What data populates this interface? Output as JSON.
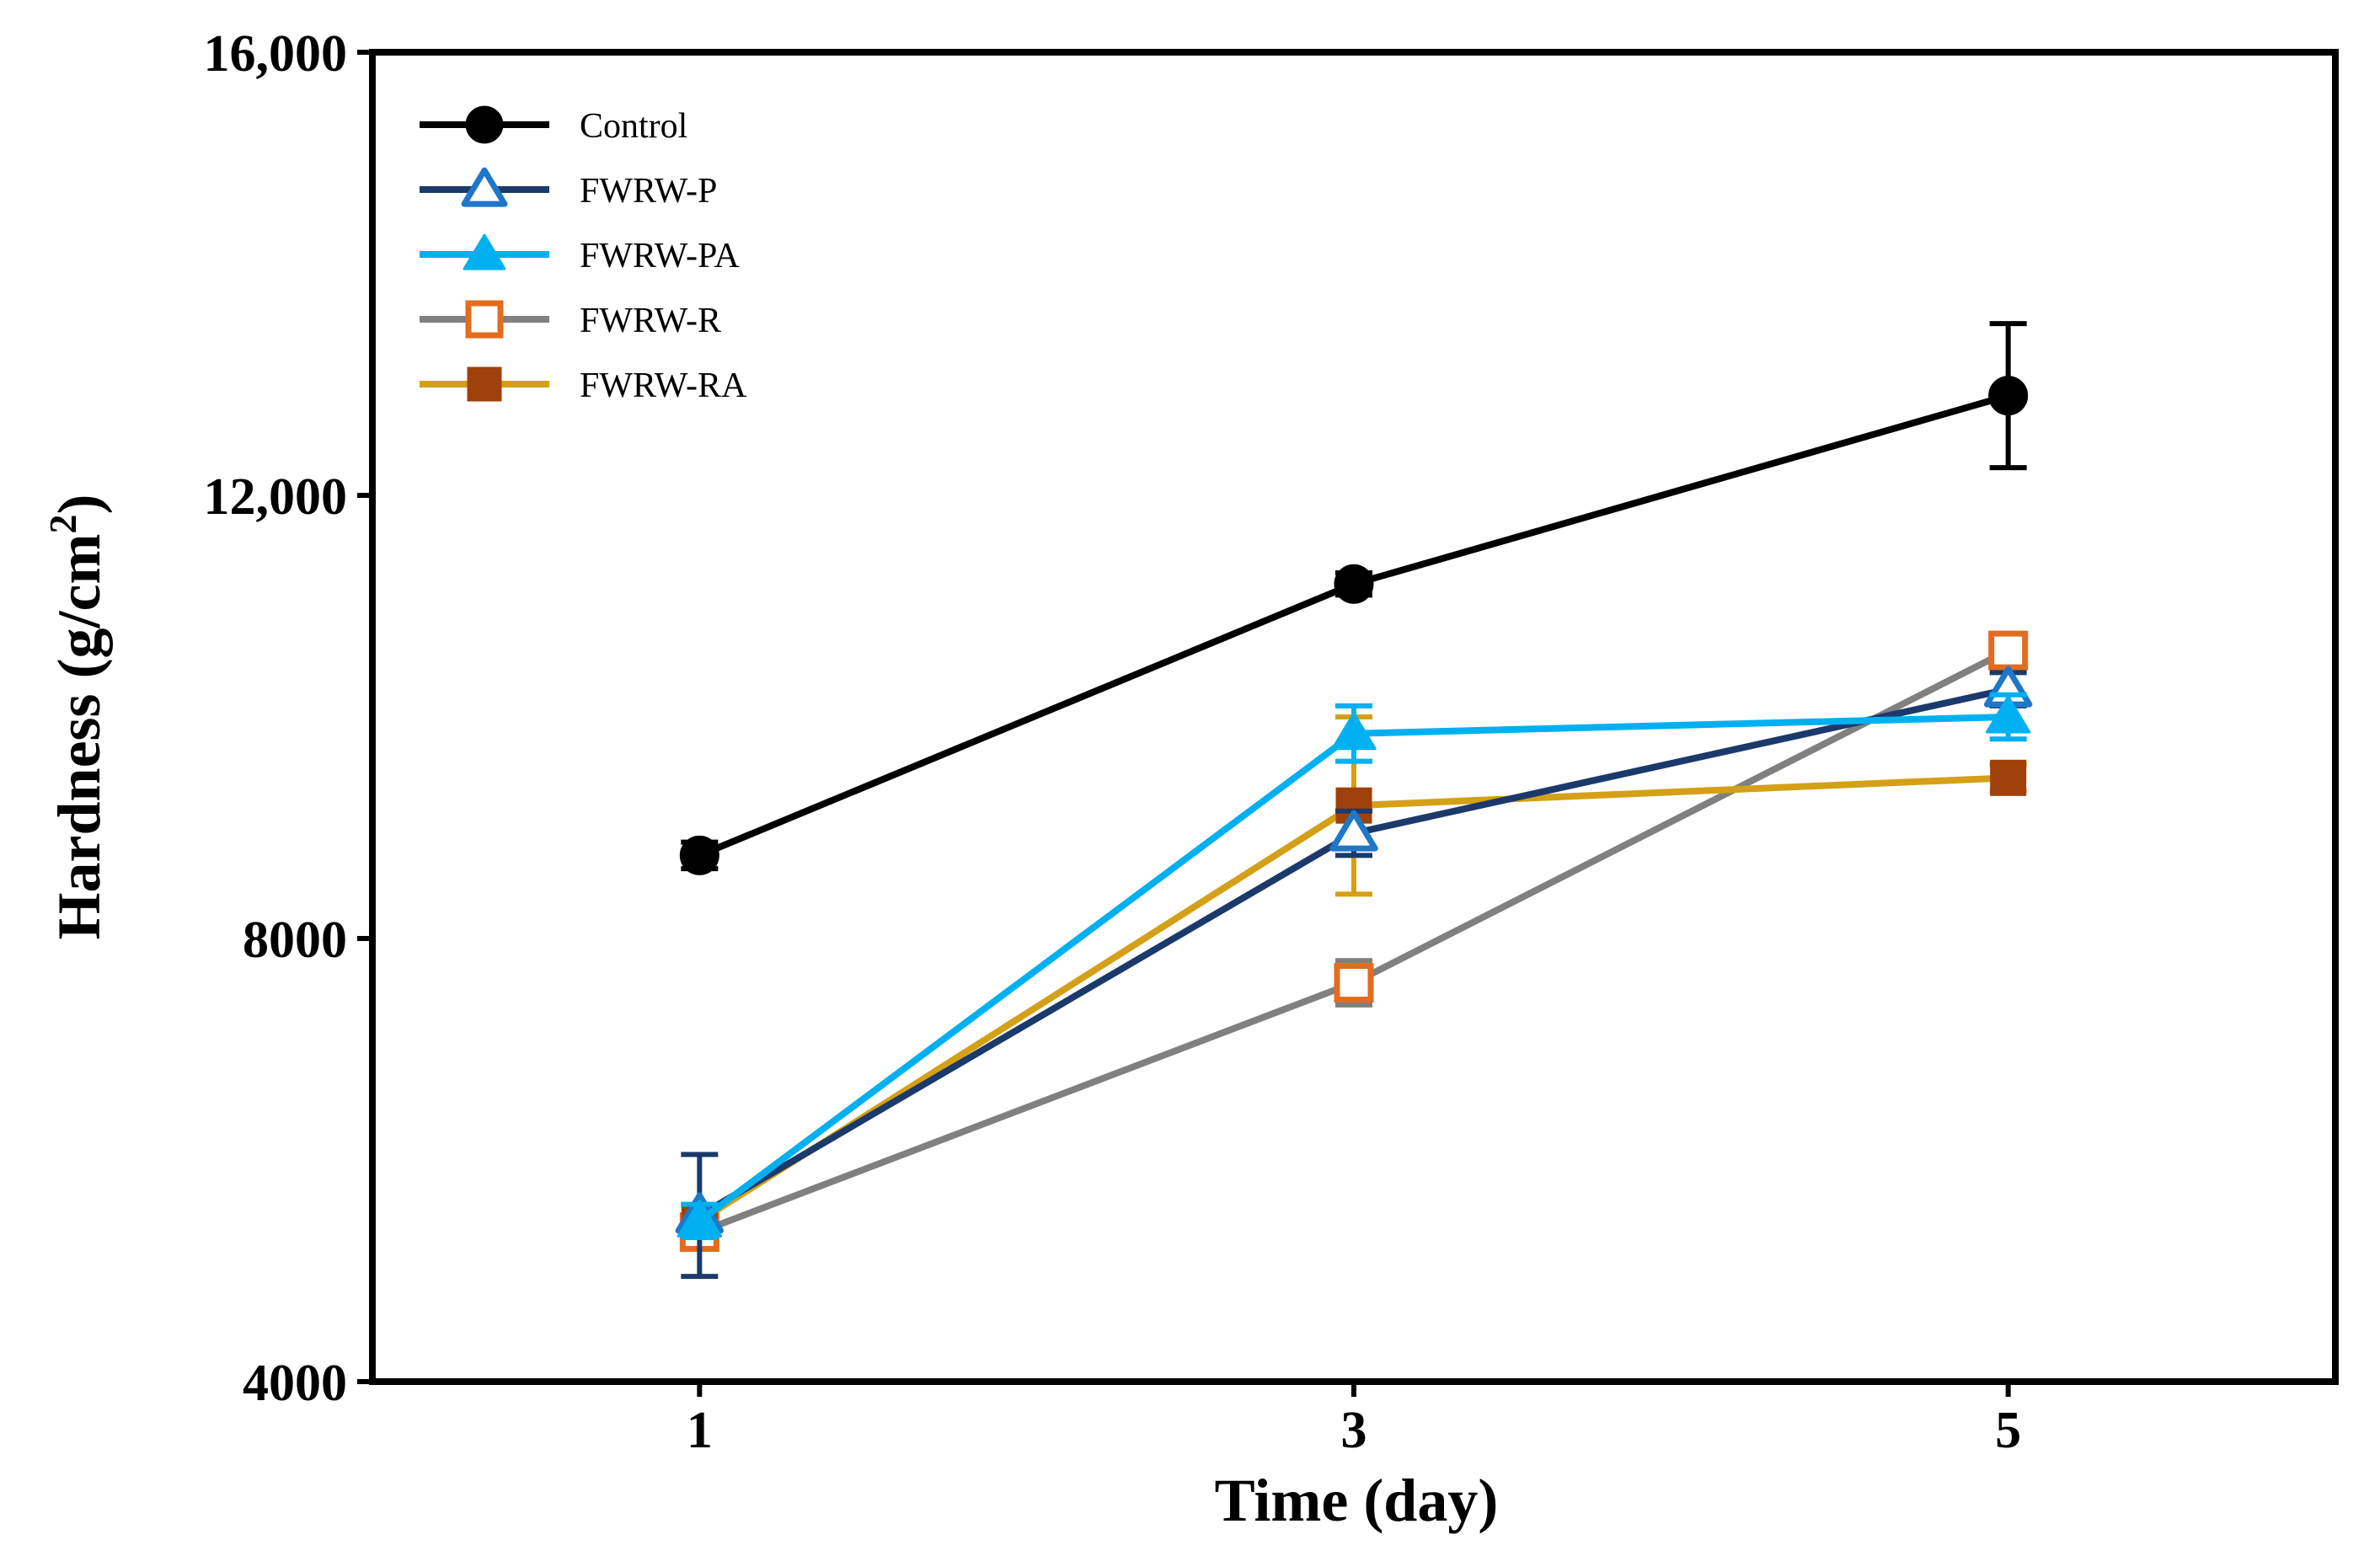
{
  "colors": {
    "control": "#000000",
    "fwrw_p": "#1b3a6b",
    "fwrw_p_marker": "#1f77c8",
    "fwrw_pa": "#00b0f0",
    "fwrw_r": "#808080",
    "fwrw_r_marker": "#e36c1e",
    "fwrw_ra": "#d4a017",
    "fwrw_ra_marker": "#a0400b"
  },
  "chart_data": {
    "type": "line",
    "title": "",
    "xlabel": "Time (day)",
    "ylabel_main": "Hardness (g/cm",
    "ylabel_sup": "2",
    "ylabel_close": ")",
    "x": [
      1,
      3,
      5
    ],
    "x_tick_labels": [
      "1",
      "3",
      "5"
    ],
    "xlim": [
      0,
      6
    ],
    "ylim": [
      4000,
      16000
    ],
    "y_ticks": [
      4000,
      8000,
      12000,
      16000
    ],
    "y_tick_labels": [
      "4000",
      "8000",
      "12,000",
      "16,000"
    ],
    "legend_position": "top-left",
    "series": [
      {
        "name": "Control",
        "key": "control",
        "marker": "circle-filled",
        "values": [
          8750,
          11200,
          12900
        ],
        "errors": [
          120,
          100,
          650
        ]
      },
      {
        "name": "FWRW-P",
        "key": "fwrw_p",
        "marker": "triangle-open",
        "values": [
          5500,
          8950,
          10250
        ],
        "errors": [
          550,
          200,
          150
        ]
      },
      {
        "name": "FWRW-PA",
        "key": "fwrw_pa",
        "marker": "triangle-filled",
        "values": [
          5450,
          9850,
          10000
        ],
        "errors": [
          150,
          250,
          200
        ]
      },
      {
        "name": "FWRW-R",
        "key": "fwrw_r",
        "marker": "square-open",
        "values": [
          5350,
          7600,
          10600
        ],
        "errors": [
          150,
          200,
          150
        ]
      },
      {
        "name": "FWRW-RA",
        "key": "fwrw_ra",
        "marker": "square-filled",
        "values": [
          5450,
          9200,
          9450
        ],
        "errors": [
          150,
          800,
          120
        ]
      }
    ]
  }
}
